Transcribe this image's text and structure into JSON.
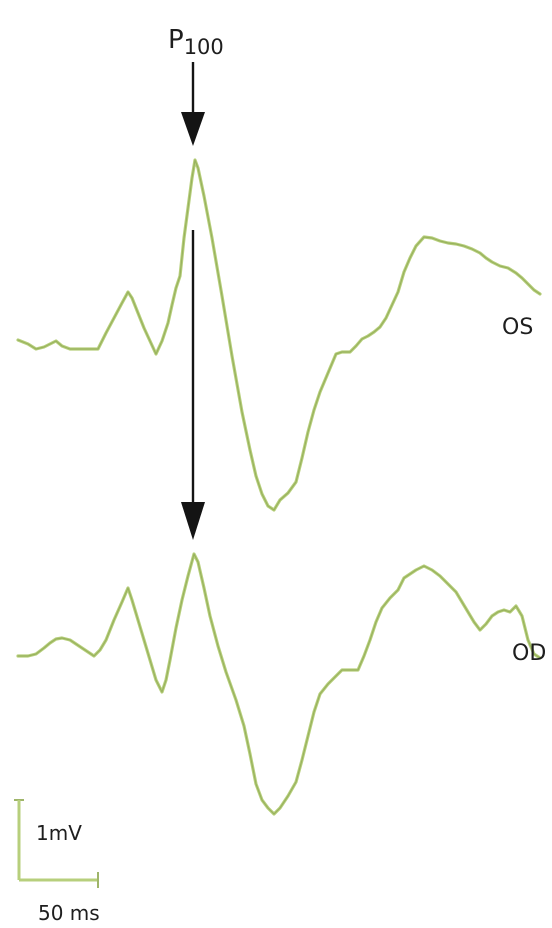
{
  "figure": {
    "peak_label_main": "P",
    "peak_label_sub": "100",
    "traces": [
      {
        "label": "OS"
      },
      {
        "label": "OD"
      }
    ],
    "scale_bar": {
      "amplitude": "1mV",
      "time": "50 ms"
    }
  },
  "colors": {
    "trace": "#b7cf7c",
    "arrow": "#141414"
  }
}
